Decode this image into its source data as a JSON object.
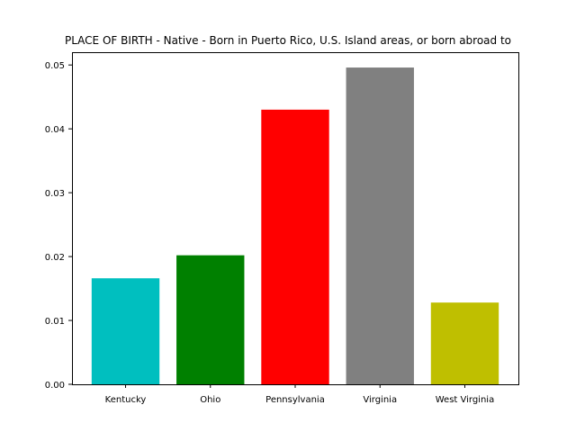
{
  "chart_data": {
    "type": "bar",
    "title": "PLACE OF BIRTH - Native - Born in Puerto Rico, U.S. Island areas, or born abroad to",
    "xlabel": "",
    "ylabel": "",
    "categories": [
      "Kentucky",
      "Ohio",
      "Pennsylvania",
      "Virginia",
      "West Virginia"
    ],
    "values": [
      0.0166,
      0.0202,
      0.043,
      0.0496,
      0.0128
    ],
    "colors": [
      "#00bfbf",
      "#008000",
      "#ff0000",
      "#808080",
      "#bfbf00"
    ],
    "ylim": [
      0,
      0.052
    ],
    "yticks": [
      0.0,
      0.01,
      0.02,
      0.03,
      0.04,
      0.05
    ],
    "ytick_labels": [
      "0.00",
      "0.01",
      "0.02",
      "0.03",
      "0.04",
      "0.05"
    ],
    "grid": false,
    "legend": "none"
  }
}
